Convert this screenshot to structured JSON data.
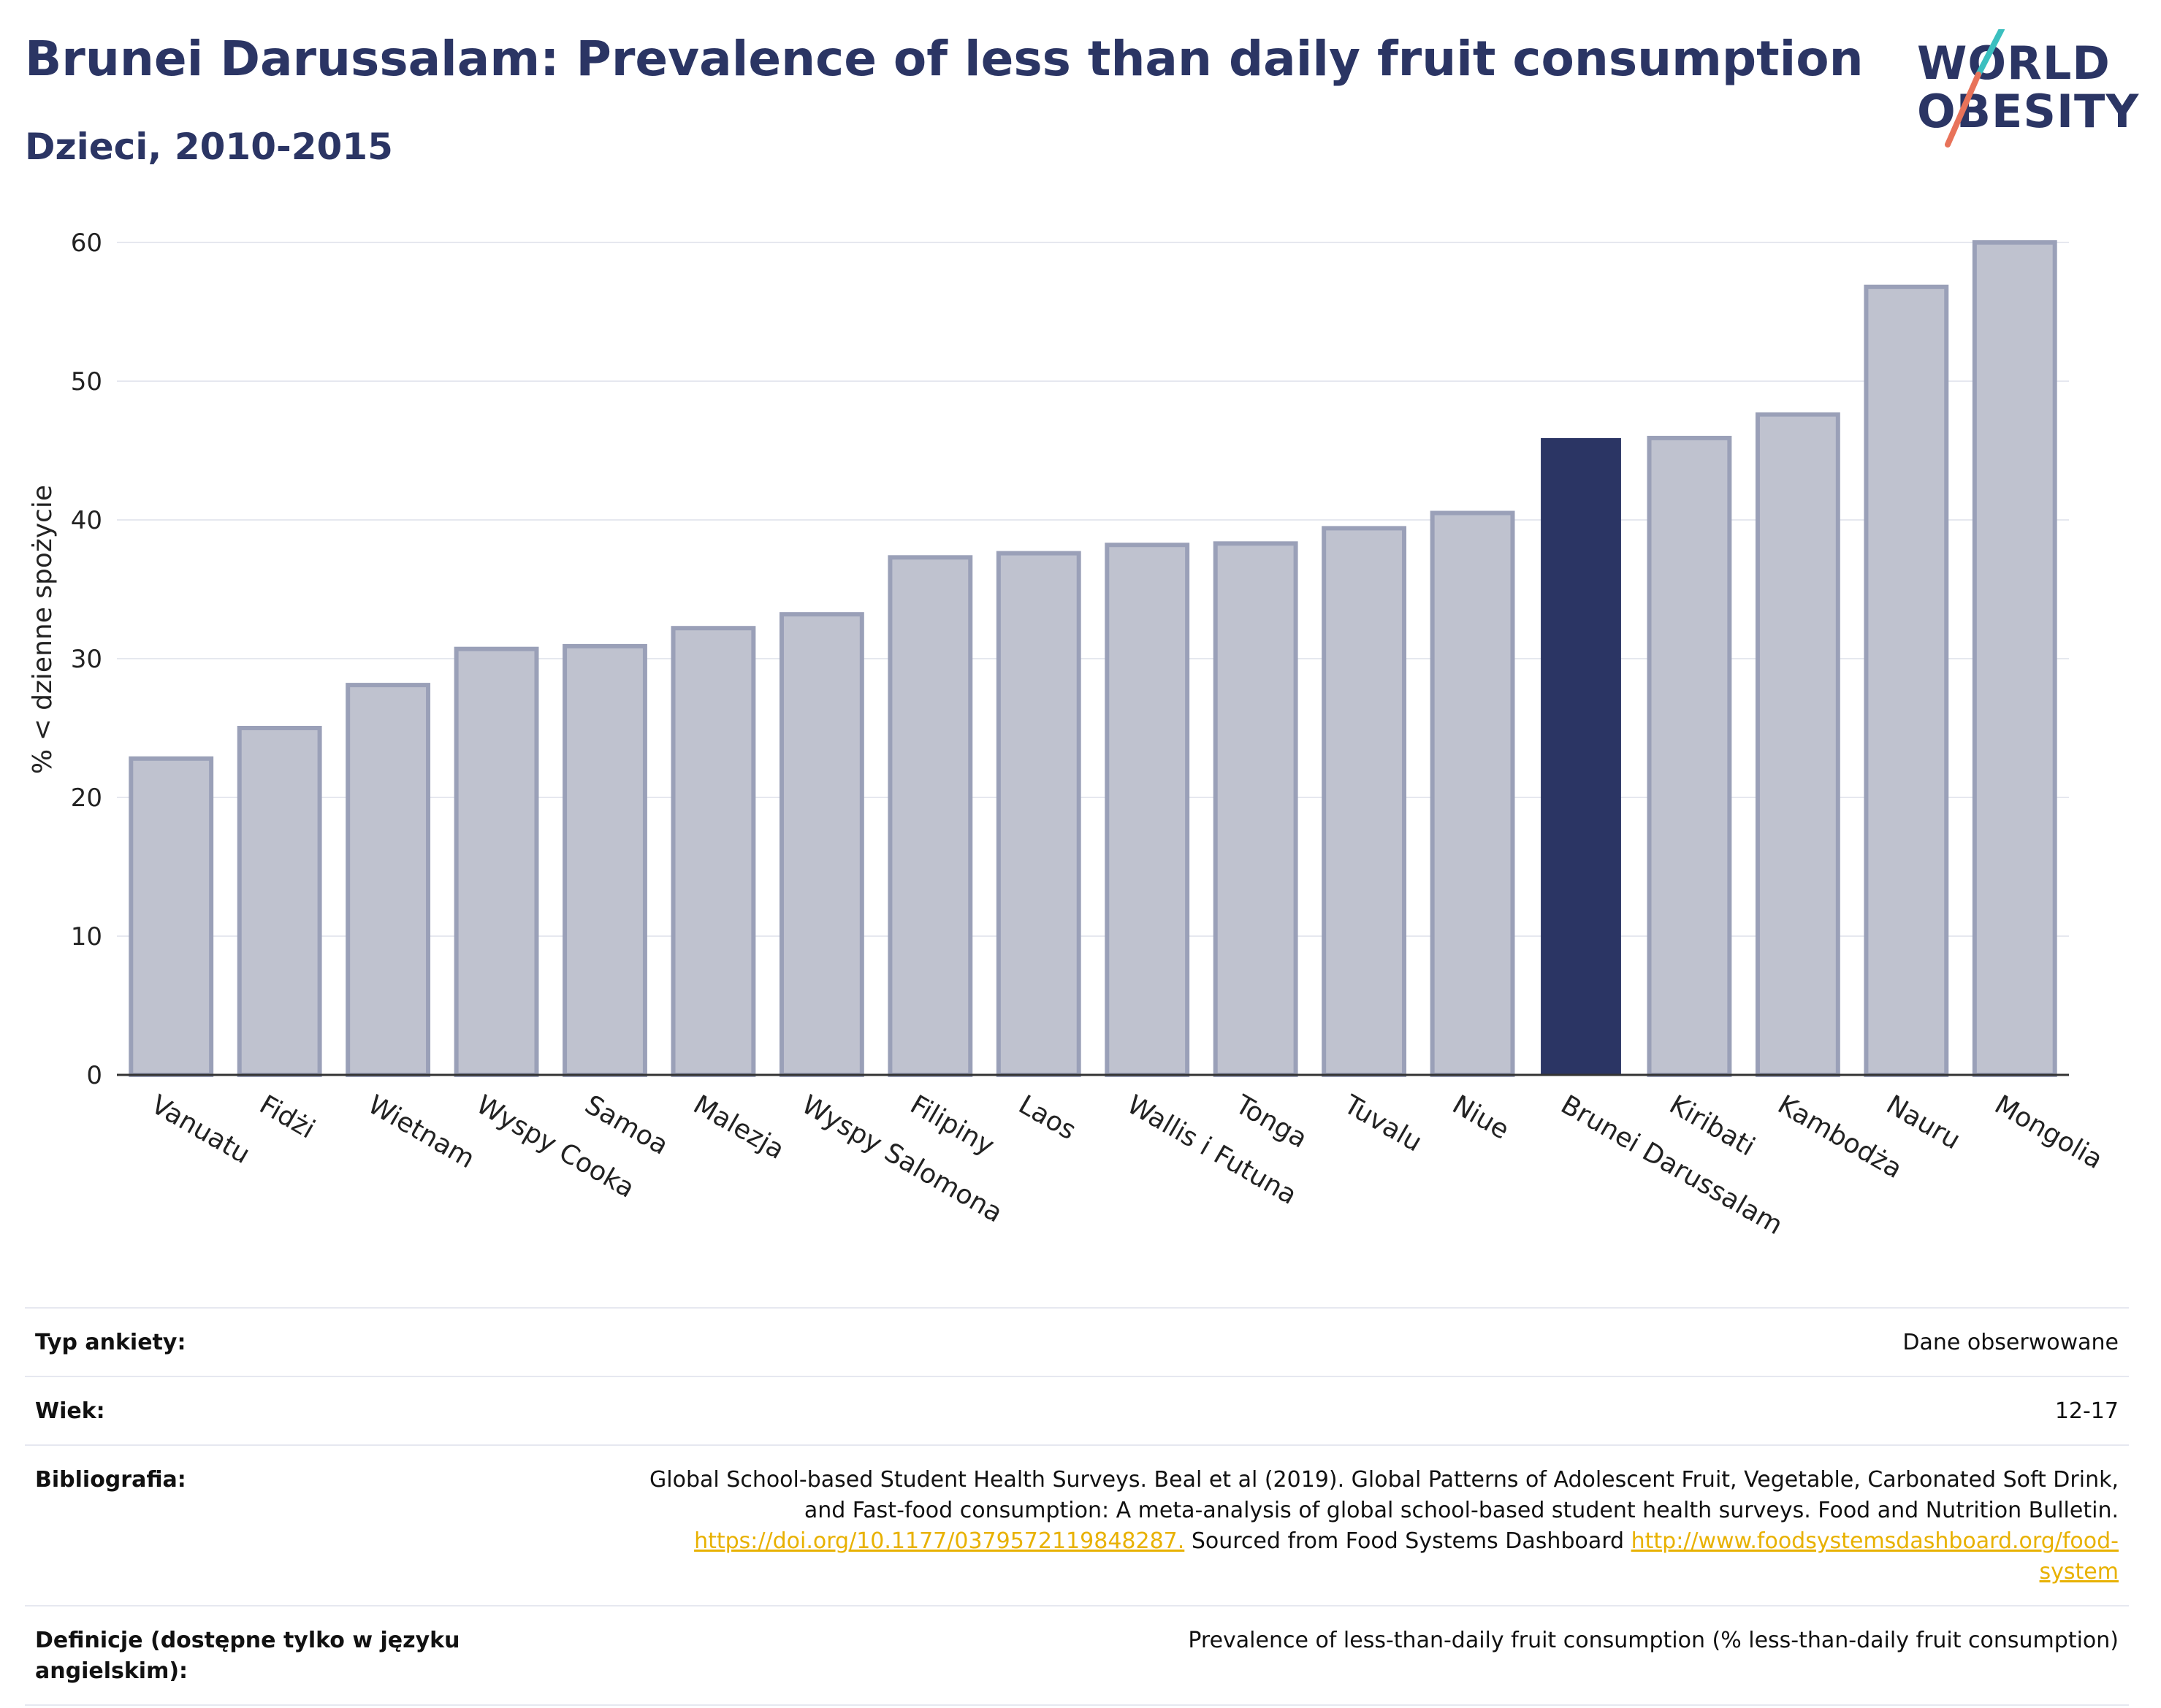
{
  "header": {
    "title": "Brunei Darussalam: Prevalence of less than daily fruit consumption",
    "subtitle": "Dzieci, 2010-2015"
  },
  "logo": {
    "line1": "WORLD",
    "line2": "OBESITY",
    "colors": {
      "text": "#2b3564",
      "slash_teal": "#3bbfbf",
      "slash_coral": "#e8735a"
    }
  },
  "colors": {
    "highlight": "#2b3564",
    "bar_fill": "#bfc2cf",
    "bar_stroke": "#9aa0b8",
    "grid": "#e6e8ef"
  },
  "chart_data": {
    "type": "bar",
    "title": "",
    "xlabel": "",
    "ylabel": "% < dzienne spożycie",
    "ylim": [
      0,
      60
    ],
    "yticks": [
      0,
      10,
      20,
      30,
      40,
      50,
      60
    ],
    "grid": true,
    "highlight": "Brunei Darussalam",
    "categories": [
      "Vanuatu",
      "Fidżi",
      "Wietnam",
      "Wyspy Cooka",
      "Samoa",
      "Malezja",
      "Wyspy Salomona",
      "Filipiny",
      "Laos",
      "Wallis i Futuna",
      "Tonga",
      "Tuvalu",
      "Niue",
      "Brunei Darussalam",
      "Kiribati",
      "Kambodża",
      "Nauru",
      "Mongolia"
    ],
    "values": [
      22.8,
      25.0,
      28.1,
      30.7,
      30.9,
      32.2,
      33.2,
      37.3,
      37.6,
      38.2,
      38.3,
      39.4,
      40.5,
      45.9,
      45.9,
      47.6,
      56.8,
      60.0
    ]
  },
  "meta": [
    {
      "label": "Typ ankiety:",
      "value": "Dane obserwowane"
    },
    {
      "label": "Wiek:",
      "value": "12-17"
    },
    {
      "label": "Bibliografia:",
      "value_lines": [
        "Global School-based Student Health Surveys. Beal et al (2019). Global Patterns of Adolescent Fruit, Vegetable, Carbonated Soft Drink,",
        "and Fast-food consumption: A meta-analysis of global school-based student health surveys. Food and Nutrition Bulletin."
      ],
      "link1": "https://doi.org/10.1177/0379572119848287.",
      "mid_text": " Sourced from Food Systems Dashboard ",
      "link2_line1": "http://www.foodsystemsdashboard.org/food-",
      "link2_line2": "system"
    },
    {
      "label": "Definicje (dostępne tylko w języku angielskim):",
      "value": "Prevalence of less-than-daily fruit consumption (% less-than-daily fruit consumption)"
    }
  ]
}
